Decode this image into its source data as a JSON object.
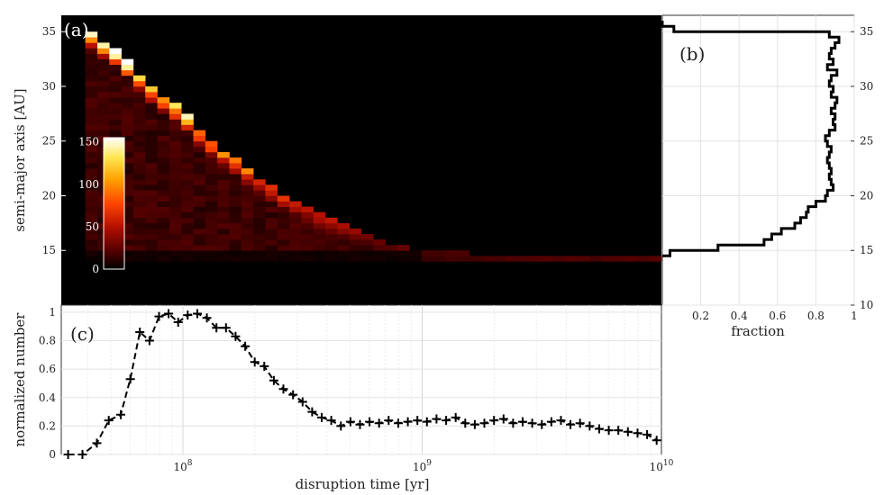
{
  "chart_data": [
    {
      "id": "a",
      "panel_label": "(a)",
      "type": "heatmap",
      "ylabel": "semi-major axis [AU]",
      "ylim": [
        10,
        36.5
      ],
      "yticks": [
        15,
        20,
        25,
        30,
        35
      ],
      "x_log10_range": [
        7.5,
        10
      ],
      "cmap": [
        "#000000",
        "#5a0000",
        "#b40f00",
        "#ff4500",
        "#ffa000",
        "#ffe650",
        "#ffffff"
      ],
      "colorbar": {
        "ticks": [
          0,
          50,
          100,
          150
        ],
        "range": [
          0,
          155
        ]
      },
      "bin_logt": 0.05,
      "bin_a": 0.5,
      "cells_description_note": "cell counts per (log t, a) bin",
      "ridge": [
        [
          7.62,
          35.0
        ],
        [
          7.75,
          32.5
        ],
        [
          7.87,
          30.0
        ],
        [
          8.0,
          27.5
        ],
        [
          8.12,
          25.0
        ],
        [
          8.25,
          22.5
        ],
        [
          8.42,
          20.0
        ],
        [
          8.62,
          17.5
        ],
        [
          8.92,
          15.0
        ],
        [
          9.3,
          14.2
        ]
      ],
      "peak_counts": [
        [
          7.75,
          150
        ],
        [
          8.0,
          120
        ],
        [
          8.25,
          90
        ],
        [
          8.5,
          60
        ],
        [
          8.75,
          35
        ],
        [
          9.0,
          22
        ]
      ]
    },
    {
      "id": "b",
      "panel_label": "(b)",
      "type": "line",
      "xlabel": "fraction",
      "xlim": [
        0,
        1
      ],
      "xticks": [
        0.2,
        0.4,
        0.6,
        0.8,
        1
      ],
      "xtick_labels": [
        "0.2",
        "0.4",
        "0.6",
        "0.8",
        "1"
      ],
      "ylim": [
        10,
        36.5
      ],
      "yticks": [
        10,
        15,
        20,
        25,
        30,
        35
      ],
      "step_bin": 0.5,
      "a_values": [
        14.5,
        15.0,
        15.5,
        16.0,
        16.5,
        17.0,
        17.5,
        18.0,
        18.5,
        19.0,
        19.5,
        20.0,
        20.5,
        21.0,
        21.5,
        22.0,
        22.5,
        23.0,
        23.5,
        24.0,
        24.5,
        25.0,
        25.5,
        26.0,
        26.5,
        27.0,
        27.5,
        28.0,
        28.5,
        29.0,
        29.5,
        30.0,
        30.5,
        31.0,
        31.5,
        32.0,
        32.5,
        33.0,
        33.5,
        34.0,
        34.5,
        35.0,
        35.5
      ],
      "fractions": [
        0.04,
        0.29,
        0.53,
        0.57,
        0.62,
        0.69,
        0.72,
        0.75,
        0.76,
        0.8,
        0.85,
        0.86,
        0.89,
        0.88,
        0.87,
        0.88,
        0.87,
        0.86,
        0.87,
        0.88,
        0.86,
        0.85,
        0.87,
        0.9,
        0.89,
        0.9,
        0.88,
        0.9,
        0.91,
        0.88,
        0.89,
        0.87,
        0.88,
        0.91,
        0.86,
        0.89,
        0.87,
        0.88,
        0.9,
        0.92,
        0.87,
        0.06,
        0.0
      ]
    },
    {
      "id": "c",
      "panel_label": "(c)",
      "type": "line",
      "xlabel": "disruption time [yr]",
      "ylabel": "normalized number",
      "xscale": "log",
      "xlim": [
        31000000.0,
        10000000000.0
      ],
      "ylim": [
        0,
        1.05
      ],
      "yticks": [
        0,
        0.2,
        0.4,
        0.6,
        0.8,
        1
      ],
      "ytick_labels": [
        "0",
        "0.2",
        "0.4",
        "0.6",
        "0.8",
        "1"
      ],
      "xtick_labels": [
        "10^8",
        "10^9",
        "10^10"
      ],
      "log10_x": [
        7.52,
        7.58,
        7.64,
        7.69,
        7.74,
        7.78,
        7.82,
        7.86,
        7.9,
        7.94,
        7.98,
        8.02,
        8.06,
        8.1,
        8.14,
        8.18,
        8.22,
        8.26,
        8.3,
        8.34,
        8.38,
        8.42,
        8.46,
        8.5,
        8.54,
        8.58,
        8.62,
        8.66,
        8.7,
        8.74,
        8.78,
        8.82,
        8.86,
        8.9,
        8.94,
        8.98,
        9.02,
        9.06,
        9.1,
        9.14,
        9.18,
        9.22,
        9.26,
        9.3,
        9.34,
        9.38,
        9.42,
        9.46,
        9.5,
        9.54,
        9.58,
        9.62,
        9.66,
        9.7,
        9.74,
        9.78,
        9.82,
        9.86,
        9.9,
        9.94,
        9.98
      ],
      "values": [
        0.0,
        0.0,
        0.08,
        0.24,
        0.28,
        0.53,
        0.86,
        0.8,
        0.97,
        0.99,
        0.93,
        0.98,
        0.99,
        0.96,
        0.89,
        0.89,
        0.83,
        0.76,
        0.65,
        0.62,
        0.52,
        0.46,
        0.42,
        0.37,
        0.3,
        0.26,
        0.24,
        0.2,
        0.23,
        0.21,
        0.23,
        0.22,
        0.24,
        0.22,
        0.23,
        0.24,
        0.23,
        0.25,
        0.24,
        0.26,
        0.22,
        0.21,
        0.22,
        0.24,
        0.25,
        0.22,
        0.23,
        0.22,
        0.21,
        0.23,
        0.24,
        0.21,
        0.22,
        0.2,
        0.18,
        0.17,
        0.17,
        0.16,
        0.15,
        0.14,
        0.1
      ]
    }
  ]
}
